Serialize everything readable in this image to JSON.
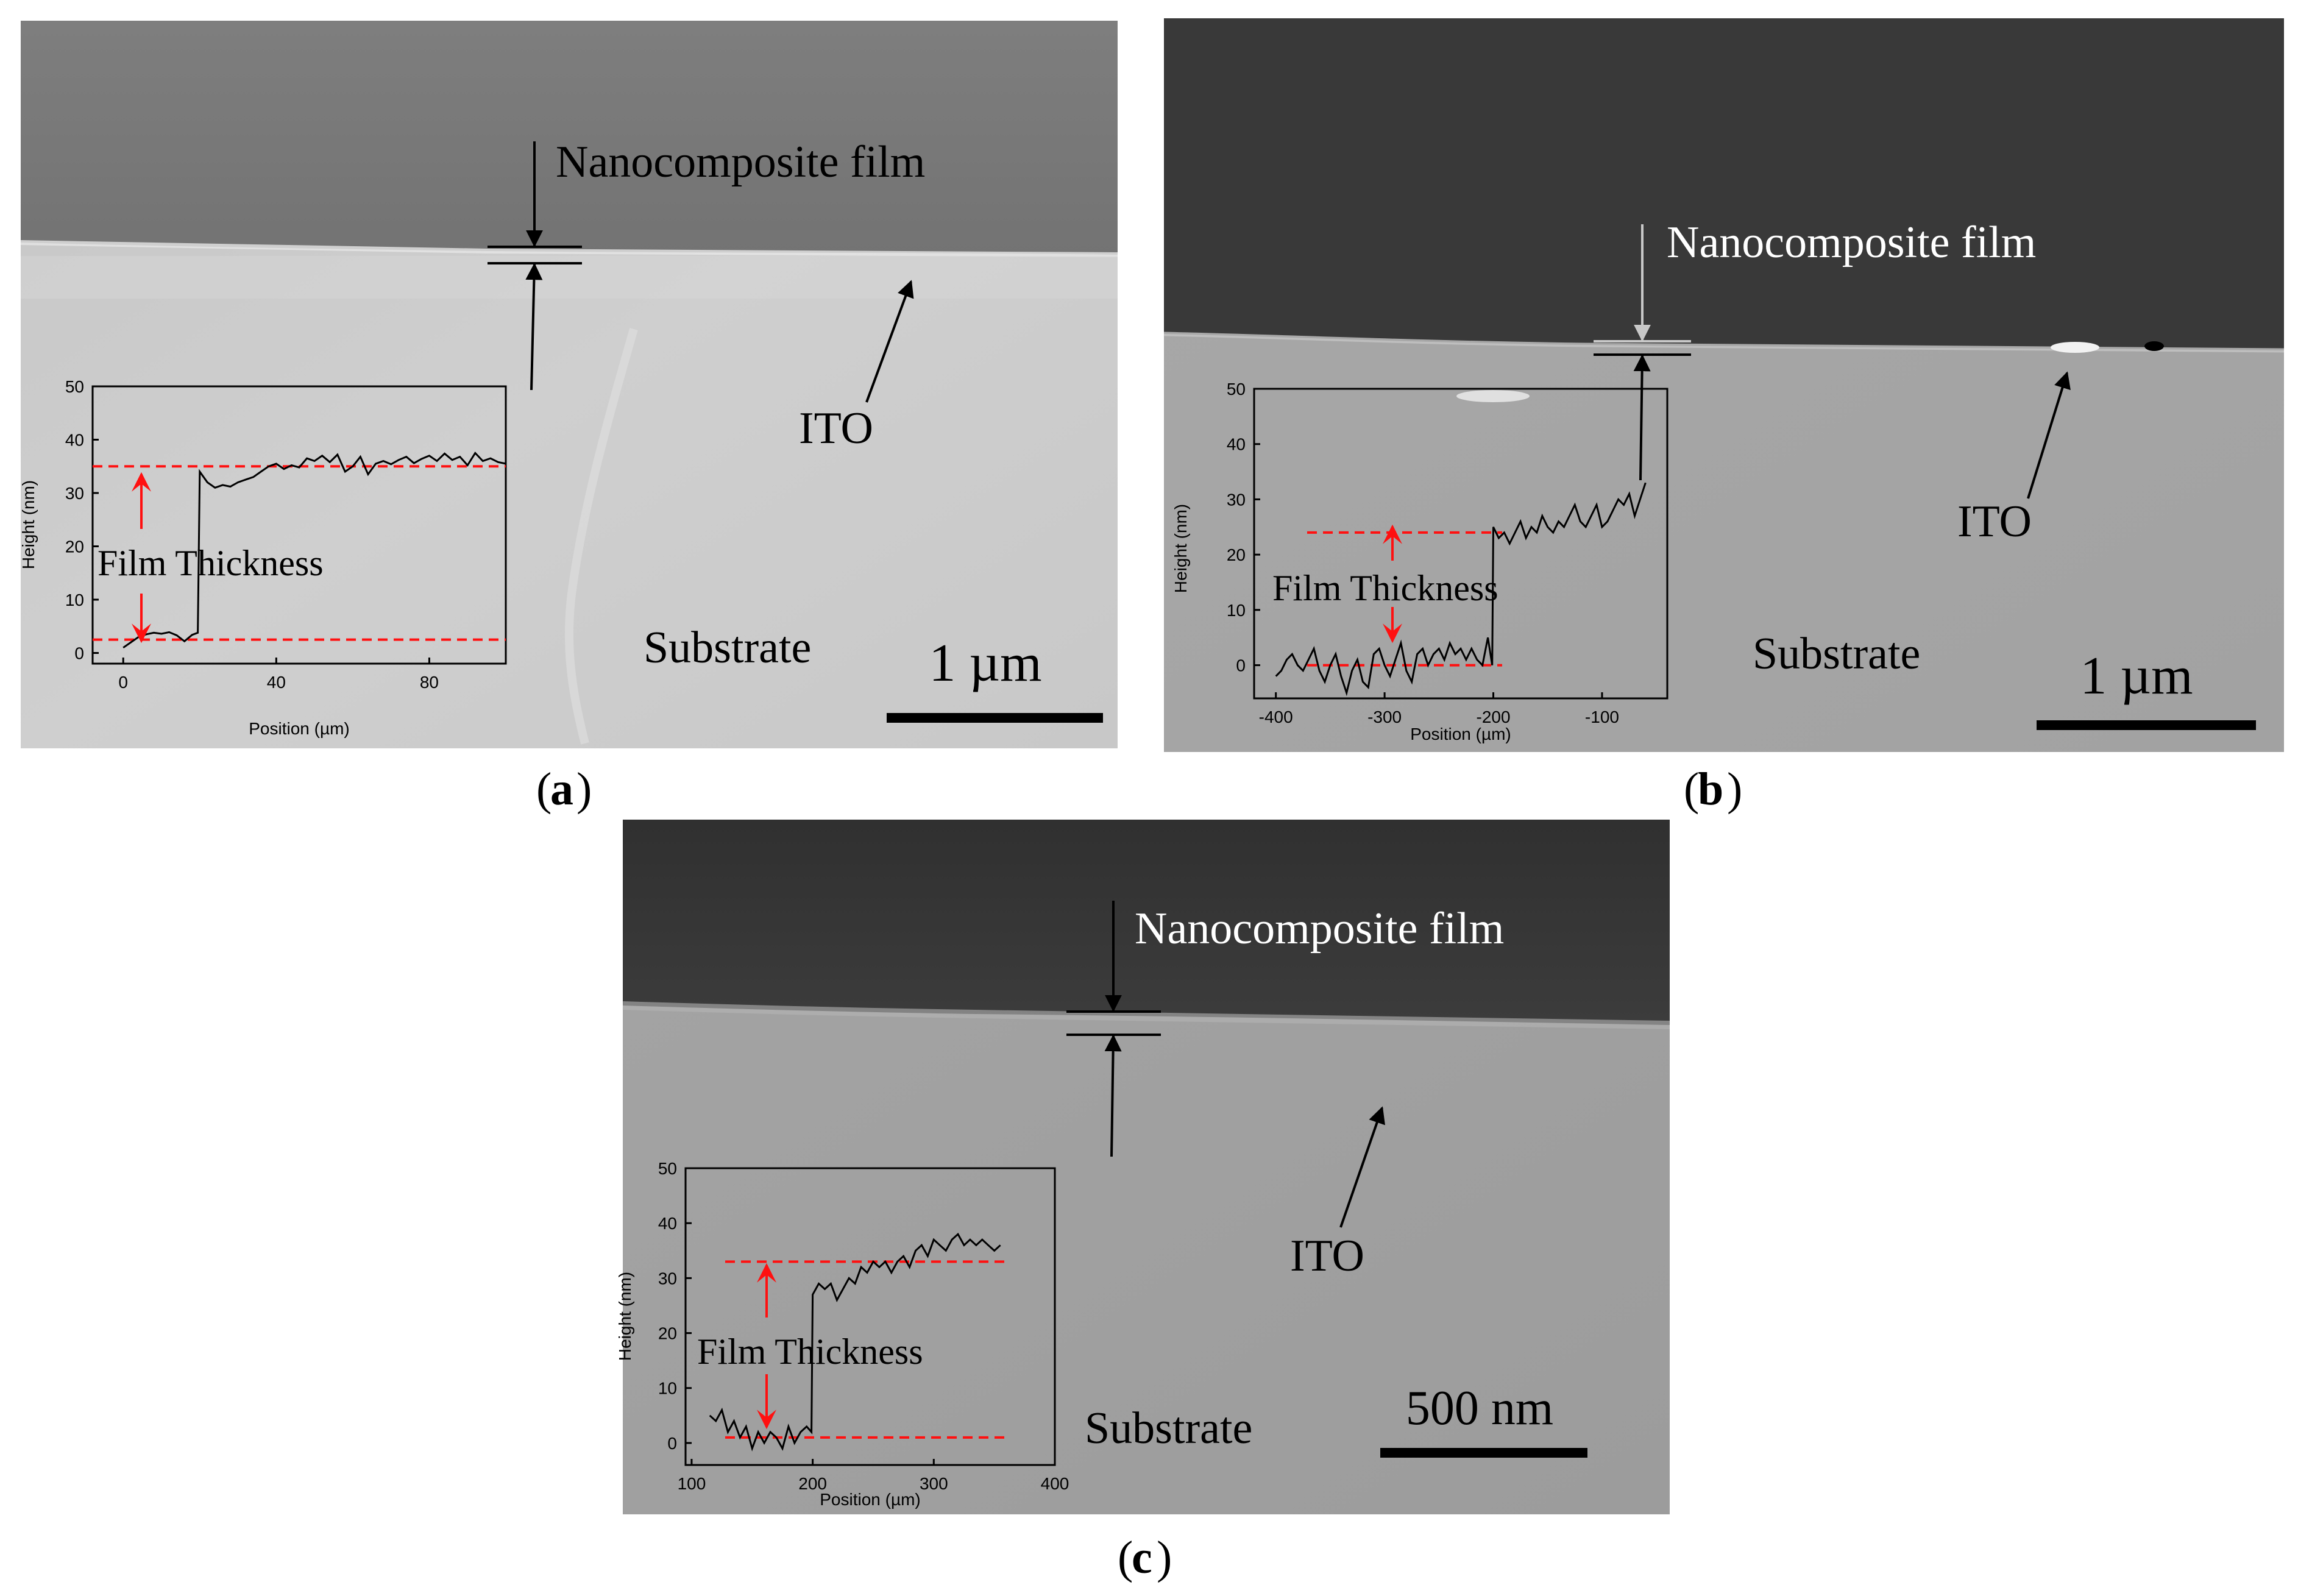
{
  "panels": [
    {
      "id": "a",
      "caption_letter": "a",
      "layer_labels": {
        "film": "Nanocomposite film",
        "ito": "ITO",
        "substrate": "Substrate"
      },
      "scale_bar": "1 µm",
      "inset": {
        "annotation": "Film Thickness",
        "chart_data": {
          "type": "line",
          "xlabel": "Position (µm)",
          "ylabel": "Height (nm)",
          "xlim": [
            -8,
            100
          ],
          "ylim": [
            -2,
            50
          ],
          "xticks": [
            0,
            40,
            80
          ],
          "yticks": [
            0,
            10,
            20,
            30,
            40,
            50
          ],
          "reference_levels": [
            2.5,
            35
          ],
          "x": [
            0,
            2,
            4,
            6,
            8,
            10,
            12,
            14,
            16,
            18,
            19.5,
            20,
            22,
            24,
            26,
            28,
            30,
            32,
            34,
            36,
            38,
            40,
            42,
            44,
            46,
            48,
            50,
            52,
            54,
            56,
            58,
            60,
            62,
            64,
            66,
            68,
            70,
            72,
            74,
            76,
            78,
            80,
            82,
            84,
            86,
            88,
            90,
            92,
            94,
            96,
            98,
            100
          ],
          "y": [
            1,
            2,
            3,
            3.5,
            3.8,
            3.6,
            3.9,
            3.3,
            2.2,
            3.4,
            3.8,
            34,
            32,
            31,
            31.5,
            31.2,
            32,
            32.5,
            33,
            34,
            35,
            35.5,
            34.5,
            35.2,
            34.8,
            36.5,
            36,
            37,
            35.8,
            37.2,
            34,
            35,
            36.8,
            33.5,
            35.5,
            36,
            35.4,
            36.2,
            36.8,
            35.6,
            36.4,
            37,
            36,
            37.4,
            36.2,
            36.8,
            35.2,
            37.5,
            36,
            36.5,
            35.8,
            35.5
          ]
        }
      }
    },
    {
      "id": "b",
      "caption_letter": "b",
      "layer_labels": {
        "film": "Nanocomposite film",
        "ito": "ITO",
        "substrate": "Substrate"
      },
      "scale_bar": "1 µm",
      "inset": {
        "annotation": "Film Thickness",
        "chart_data": {
          "type": "line",
          "xlabel": "Position (µm)",
          "ylabel": "Height (nm)",
          "xlim": [
            -420,
            -40
          ],
          "ylim": [
            -6,
            50
          ],
          "xticks": [
            -400,
            -300,
            -200,
            -100
          ],
          "yticks": [
            0,
            10,
            20,
            30,
            40,
            50
          ],
          "reference_levels": [
            0,
            24
          ],
          "x": [
            -400,
            -395,
            -390,
            -385,
            -380,
            -375,
            -370,
            -365,
            -360,
            -355,
            -350,
            -345,
            -340,
            -335,
            -330,
            -325,
            -320,
            -315,
            -310,
            -305,
            -300,
            -295,
            -290,
            -285,
            -280,
            -275,
            -270,
            -265,
            -260,
            -255,
            -250,
            -245,
            -240,
            -235,
            -230,
            -225,
            -220,
            -215,
            -210,
            -205,
            -201,
            -200,
            -195,
            -190,
            -185,
            -180,
            -175,
            -170,
            -165,
            -160,
            -155,
            -150,
            -145,
            -140,
            -135,
            -130,
            -125,
            -120,
            -115,
            -110,
            -105,
            -100,
            -95,
            -90,
            -85,
            -80,
            -75,
            -70,
            -65,
            -60
          ],
          "y": [
            -2,
            -1,
            1,
            2,
            0,
            -1,
            1,
            3,
            -1,
            -3,
            0,
            2,
            -2,
            -5,
            -1,
            1,
            -3,
            -4,
            2,
            3,
            0,
            -2,
            1,
            4,
            -1,
            -3,
            2,
            3,
            0,
            2,
            3,
            1,
            4,
            2,
            3,
            1,
            3,
            1,
            0,
            5,
            0,
            25,
            23,
            24,
            22,
            24,
            26,
            23,
            25,
            24,
            27,
            25,
            24,
            26,
            25,
            27,
            29,
            26,
            25,
            27,
            29,
            25,
            26,
            28,
            30,
            29,
            31,
            27,
            30,
            33
          ]
        }
      }
    },
    {
      "id": "c",
      "caption_letter": "c",
      "layer_labels": {
        "film": "Nanocomposite film",
        "ito": "ITO",
        "substrate": "Substrate"
      },
      "scale_bar": "500 nm",
      "inset": {
        "annotation": "Film Thickness",
        "chart_data": {
          "type": "line",
          "xlabel": "Position (µm)",
          "ylabel": "Height (nm)",
          "xlim": [
            95,
            400
          ],
          "ylim": [
            -4,
            50
          ],
          "xticks": [
            100,
            200,
            300,
            400
          ],
          "yticks": [
            0,
            10,
            20,
            30,
            40,
            50
          ],
          "reference_levels": [
            1,
            33
          ],
          "x": [
            115,
            120,
            125,
            130,
            135,
            140,
            145,
            150,
            155,
            160,
            165,
            170,
            175,
            180,
            185,
            190,
            195,
            199,
            200,
            205,
            210,
            215,
            220,
            225,
            230,
            235,
            240,
            245,
            250,
            255,
            260,
            265,
            270,
            275,
            280,
            285,
            290,
            295,
            300,
            305,
            310,
            315,
            320,
            325,
            330,
            335,
            340,
            345,
            350,
            355
          ],
          "y": [
            5,
            4,
            6,
            2,
            4,
            1,
            3,
            -1,
            2,
            0,
            2,
            1,
            -1,
            3,
            0,
            2,
            3,
            2,
            27,
            29,
            28,
            29,
            26,
            28,
            30,
            29,
            32,
            31,
            33,
            32,
            33,
            31,
            33,
            34,
            32,
            35,
            36,
            34,
            37,
            36,
            35,
            37,
            38,
            36,
            37,
            36,
            37,
            36,
            35,
            36
          ]
        }
      }
    }
  ]
}
